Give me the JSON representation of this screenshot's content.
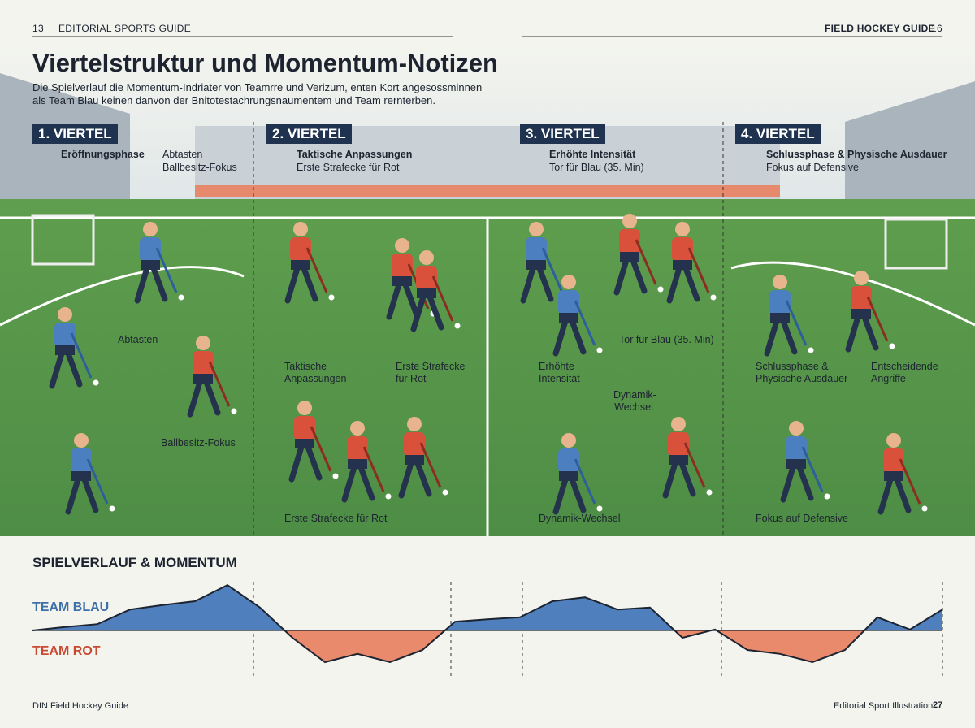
{
  "header": {
    "page_left": "13",
    "section_left": "EDITORIAL SPORTS GUIDE",
    "section_right": "FIELD HOCKEY GUIDE",
    "page_right": "16"
  },
  "title": "Viertelstruktur und Momentum-Notizen",
  "intro": [
    "Die Spielverlauf die Momentum-Indriater von Teamrre und Verizum, enten Kort angesossminnen",
    "als Team Blau keinen danvon der Bnitotestachrungsnaumentem und Team rernterben."
  ],
  "quarters": [
    {
      "label": "1. VIERTEL",
      "heading": "Eröffnungsphase",
      "legend": [
        "Abtasten",
        "Ballbesitz-Fokus"
      ],
      "notes": [
        "Abtasten",
        "Ballbesitz-Fokus"
      ]
    },
    {
      "label": "2. VIERTEL",
      "heading": "Taktische Anpassungen",
      "sub": "Erste Strafecke für Rot",
      "notes": [
        "Taktische Anpassungen",
        "Erste Strafecke für Rot",
        "Erste Strafecke für Rot"
      ]
    },
    {
      "label": "3. VIERTEL",
      "heading": "Erhöhte Intensität",
      "sub": "Tor für Blau (35. Min)",
      "notes": [
        "Tor für Blau (35. Min)",
        "Erhöhte Intensität",
        "Dynamik-Wechsel",
        "Dynamik-Wechsel"
      ]
    },
    {
      "label": "4. VIERTEL",
      "heading": "Schlussphase & Physische Ausdauer",
      "sub": "Fokus auf Defensive",
      "notes": [
        "Schlussphase & Physische Ausdauer",
        "Entscheidende Angriffe",
        "Fokus auf Defensive"
      ]
    }
  ],
  "momentum": {
    "title": "SPIELVERLAUF & MOMENTUM",
    "team_a": "TEAM BLAU",
    "team_b": "TEAM ROT",
    "color_a": "#4f7fbd",
    "color_b": "#e98a6c",
    "ylim": [
      -1,
      1
    ],
    "values": [
      0,
      0.07,
      0.13,
      0.43,
      0.52,
      0.6,
      0.93,
      0.47,
      -0.15,
      -0.65,
      -0.48,
      -0.65,
      -0.4,
      0.18,
      0.23,
      0.27,
      0.6,
      0.68,
      0.43,
      0.47,
      -0.15,
      0.02,
      -0.4,
      -0.48,
      -0.65,
      -0.4,
      0.27,
      0.02,
      0.43
    ]
  },
  "footer": {
    "left": "DIN  Field Hockey Guide",
    "right": "Editorial Sport Illustration",
    "page": "27"
  }
}
